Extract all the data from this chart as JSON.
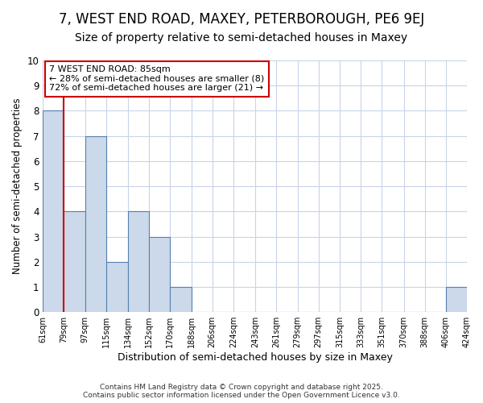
{
  "title1": "7, WEST END ROAD, MAXEY, PETERBOROUGH, PE6 9EJ",
  "title2": "Size of property relative to semi-detached houses in Maxey",
  "xlabel": "Distribution of semi-detached houses by size in Maxey",
  "ylabel": "Number of semi-detached properties",
  "bin_edges": [
    61,
    79,
    97,
    115,
    134,
    152,
    170,
    188,
    206,
    224,
    243,
    261,
    279,
    297,
    315,
    333,
    351,
    370,
    388,
    406,
    424
  ],
  "counts": [
    8,
    4,
    7,
    2,
    4,
    3,
    1,
    0,
    0,
    0,
    0,
    0,
    0,
    0,
    0,
    0,
    0,
    0,
    0,
    1
  ],
  "bar_color": "#ccd9ea",
  "bar_edge_color": "#5580b0",
  "red_line_x": 79,
  "annotation_title": "7 WEST END ROAD: 85sqm",
  "annotation_line2": "← 28% of semi-detached houses are smaller (8)",
  "annotation_line3": "72% of semi-detached houses are larger (21) →",
  "annotation_box_color": "#cc0000",
  "ylim": [
    0,
    10
  ],
  "yticks": [
    0,
    1,
    2,
    3,
    4,
    5,
    6,
    7,
    8,
    9,
    10
  ],
  "background_color": "#ffffff",
  "grid_color": "#c8d4e8",
  "footer": "Contains HM Land Registry data © Crown copyright and database right 2025.\nContains public sector information licensed under the Open Government Licence v3.0.",
  "title1_fontsize": 12,
  "title2_fontsize": 10
}
